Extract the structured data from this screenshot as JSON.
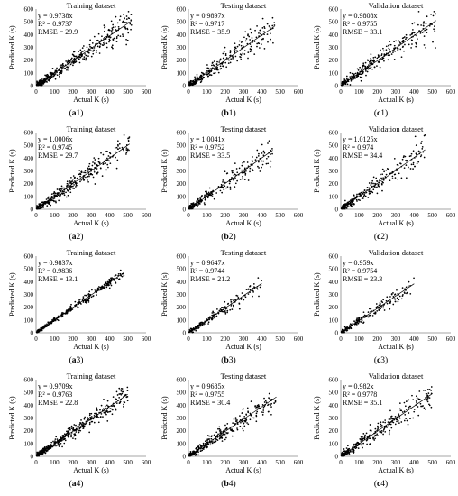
{
  "chart_data": [
    {
      "id": "a1",
      "caption_letter": "a",
      "caption_num": "1",
      "type": "scatter",
      "title": "Training dataset",
      "xlabel": "Actual K (s)",
      "ylabel": "Predicted K (s)",
      "xlim": [
        0,
        600
      ],
      "ylim": [
        0,
        600
      ],
      "xticks": [
        0,
        100,
        200,
        300,
        400,
        500,
        600
      ],
      "yticks": [
        0,
        100,
        200,
        300,
        400,
        500,
        600
      ],
      "equation": "y = 0.9738x",
      "r2": "R² = 0.9737",
      "rmse": "RMSE = 29.9",
      "slope": 0.9738,
      "x_range": [
        5,
        520
      ],
      "noise": 29.9,
      "n_points": 420
    },
    {
      "id": "b1",
      "caption_letter": "b",
      "caption_num": "1",
      "type": "scatter",
      "title": "Testing dataset",
      "xlabel": "Actual K (s)",
      "ylabel": "Predicted K (s)",
      "xlim": [
        0,
        600
      ],
      "ylim": [
        0,
        600
      ],
      "xticks": [
        0,
        100,
        200,
        300,
        400,
        500,
        600
      ],
      "yticks": [
        0,
        100,
        200,
        300,
        400,
        500,
        600
      ],
      "equation": "y = 0.9897x",
      "r2": "R² = 0.9717",
      "rmse": "RMSE = 35.9",
      "slope": 0.9897,
      "x_range": [
        5,
        470
      ],
      "noise": 35.9,
      "n_points": 300
    },
    {
      "id": "c1",
      "caption_letter": "c",
      "caption_num": "1",
      "type": "scatter",
      "title": "Validation dataset",
      "xlabel": "Actual K (s)",
      "ylabel": "Predicted K (s)",
      "xlim": [
        0,
        600
      ],
      "ylim": [
        0,
        600
      ],
      "xticks": [
        0,
        100,
        200,
        300,
        400,
        500,
        600
      ],
      "yticks": [
        0,
        100,
        200,
        300,
        400,
        500,
        600
      ],
      "equation": "y = 0.9808x",
      "r2": "R² = 0.9755",
      "rmse": "RMSE = 33.1",
      "slope": 0.9808,
      "x_range": [
        5,
        520
      ],
      "noise": 33.1,
      "n_points": 300
    },
    {
      "id": "a2",
      "caption_letter": "a",
      "caption_num": "2",
      "type": "scatter",
      "title": "Training dataset",
      "xlabel": "Actual K (s)",
      "ylabel": "Predicted K (s)",
      "xlim": [
        0,
        600
      ],
      "ylim": [
        0,
        600
      ],
      "xticks": [
        0,
        100,
        200,
        300,
        400,
        500,
        600
      ],
      "yticks": [
        0,
        100,
        200,
        300,
        400,
        500,
        600
      ],
      "equation": "y = 1.0006x",
      "r2": "R² = 0.9745",
      "rmse": "RMSE = 29.7",
      "slope": 1.0006,
      "x_range": [
        5,
        510
      ],
      "noise": 29.7,
      "n_points": 380
    },
    {
      "id": "b2",
      "caption_letter": "b",
      "caption_num": "2",
      "type": "scatter",
      "title": "Testing dataset",
      "xlabel": "Actual K (s)",
      "ylabel": "Predicted K (s)",
      "xlim": [
        0,
        600
      ],
      "ylim": [
        0,
        600
      ],
      "xticks": [
        0,
        100,
        200,
        300,
        400,
        500,
        600
      ],
      "yticks": [
        0,
        100,
        200,
        300,
        400,
        500,
        600
      ],
      "equation": "y = 1.0041x",
      "r2": "R² = 0.9752",
      "rmse": "RMSE = 33.5",
      "slope": 1.0041,
      "x_range": [
        5,
        460
      ],
      "noise": 33.5,
      "n_points": 260
    },
    {
      "id": "c2",
      "caption_letter": "c",
      "caption_num": "2",
      "type": "scatter",
      "title": "Validation dataset",
      "xlabel": "Actual K (s)",
      "ylabel": "Predicted K (s)",
      "xlim": [
        0,
        600
      ],
      "ylim": [
        0,
        600
      ],
      "xticks": [
        0,
        100,
        200,
        300,
        400,
        500,
        600
      ],
      "yticks": [
        0,
        100,
        200,
        300,
        400,
        500,
        600
      ],
      "equation": "y = 1.0125x",
      "r2": "R² = 0.974",
      "rmse": "RMSE = 34.4",
      "slope": 1.0125,
      "x_range": [
        5,
        460
      ],
      "noise": 34.4,
      "n_points": 260
    },
    {
      "id": "a3",
      "caption_letter": "a",
      "caption_num": "3",
      "type": "scatter",
      "title": "Training dataset",
      "xlabel": "Actual K (s)",
      "ylabel": "Predicted K (s)",
      "xlim": [
        0,
        600
      ],
      "ylim": [
        0,
        600
      ],
      "xticks": [
        0,
        100,
        200,
        300,
        400,
        500,
        600
      ],
      "yticks": [
        0,
        100,
        200,
        300,
        400,
        500,
        600
      ],
      "equation": "y = 0.9837x",
      "r2": "R² = 0.9836",
      "rmse": "RMSE = 13.1",
      "slope": 0.9837,
      "x_range": [
        5,
        480
      ],
      "noise": 13.1,
      "n_points": 320
    },
    {
      "id": "b3",
      "caption_letter": "b",
      "caption_num": "3",
      "type": "scatter",
      "title": "Testing dataset",
      "xlabel": "Actual K (s)",
      "ylabel": "Predicted K (s)",
      "xlim": [
        0,
        600
      ],
      "ylim": [
        0,
        600
      ],
      "xticks": [
        0,
        100,
        200,
        300,
        400,
        500,
        600
      ],
      "yticks": [
        0,
        100,
        200,
        300,
        400,
        500,
        600
      ],
      "equation": "y = 0.9647x",
      "r2": "R² = 0.9744",
      "rmse": "RMSE = 21.2",
      "slope": 0.9647,
      "x_range": [
        5,
        400
      ],
      "noise": 21.2,
      "n_points": 200
    },
    {
      "id": "c3",
      "caption_letter": "c",
      "caption_num": "3",
      "type": "scatter",
      "title": "Validation dataset",
      "xlabel": "Actual K (s)",
      "ylabel": "Predicted K (s)",
      "xlim": [
        0,
        600
      ],
      "ylim": [
        0,
        600
      ],
      "xticks": [
        0,
        100,
        200,
        300,
        400,
        500,
        600
      ],
      "yticks": [
        0,
        100,
        200,
        300,
        400,
        500,
        600
      ],
      "equation": "y = 0.959x",
      "r2": "R² = 0.9754",
      "rmse": "RMSE = 23.3",
      "slope": 0.959,
      "x_range": [
        5,
        400
      ],
      "noise": 23.3,
      "n_points": 200
    },
    {
      "id": "a4",
      "caption_letter": "a",
      "caption_num": "4",
      "type": "scatter",
      "title": "Training dataset",
      "xlabel": "Actual K (s)",
      "ylabel": "Predicted K (s)",
      "xlim": [
        0,
        600
      ],
      "ylim": [
        0,
        600
      ],
      "xticks": [
        0,
        100,
        200,
        300,
        400,
        500,
        600
      ],
      "yticks": [
        0,
        100,
        200,
        300,
        400,
        500,
        600
      ],
      "equation": "y = 0.9709x",
      "r2": "R² = 0.9763",
      "rmse": "RMSE = 22.8",
      "slope": 0.9709,
      "x_range": [
        5,
        500
      ],
      "noise": 22.8,
      "n_points": 420
    },
    {
      "id": "b4",
      "caption_letter": "b",
      "caption_num": "4",
      "type": "scatter",
      "title": "Testing dataset",
      "xlabel": "Actual K (s)",
      "ylabel": "Predicted K (s)",
      "xlim": [
        0,
        600
      ],
      "ylim": [
        0,
        600
      ],
      "xticks": [
        0,
        100,
        200,
        300,
        400,
        500,
        600
      ],
      "yticks": [
        0,
        100,
        200,
        300,
        400,
        500,
        600
      ],
      "equation": "y = 0.9685x",
      "r2": "R² = 0.9755",
      "rmse": "RMSE = 30.4",
      "slope": 0.9685,
      "x_range": [
        5,
        480
      ],
      "noise": 30.4,
      "n_points": 320
    },
    {
      "id": "c4",
      "caption_letter": "c",
      "caption_num": "4",
      "type": "scatter",
      "title": "Validation dataset",
      "xlabel": "Actual K (s)",
      "ylabel": "Predicted K (s)",
      "xlim": [
        0,
        600
      ],
      "ylim": [
        0,
        600
      ],
      "xticks": [
        0,
        100,
        200,
        300,
        400,
        500,
        600
      ],
      "yticks": [
        0,
        100,
        200,
        300,
        400,
        500,
        600
      ],
      "equation": "y = 0.982x",
      "r2": "R² = 0.9778",
      "rmse": "RMSE = 35.1",
      "slope": 0.982,
      "x_range": [
        5,
        500
      ],
      "noise": 35.1,
      "n_points": 320
    }
  ]
}
